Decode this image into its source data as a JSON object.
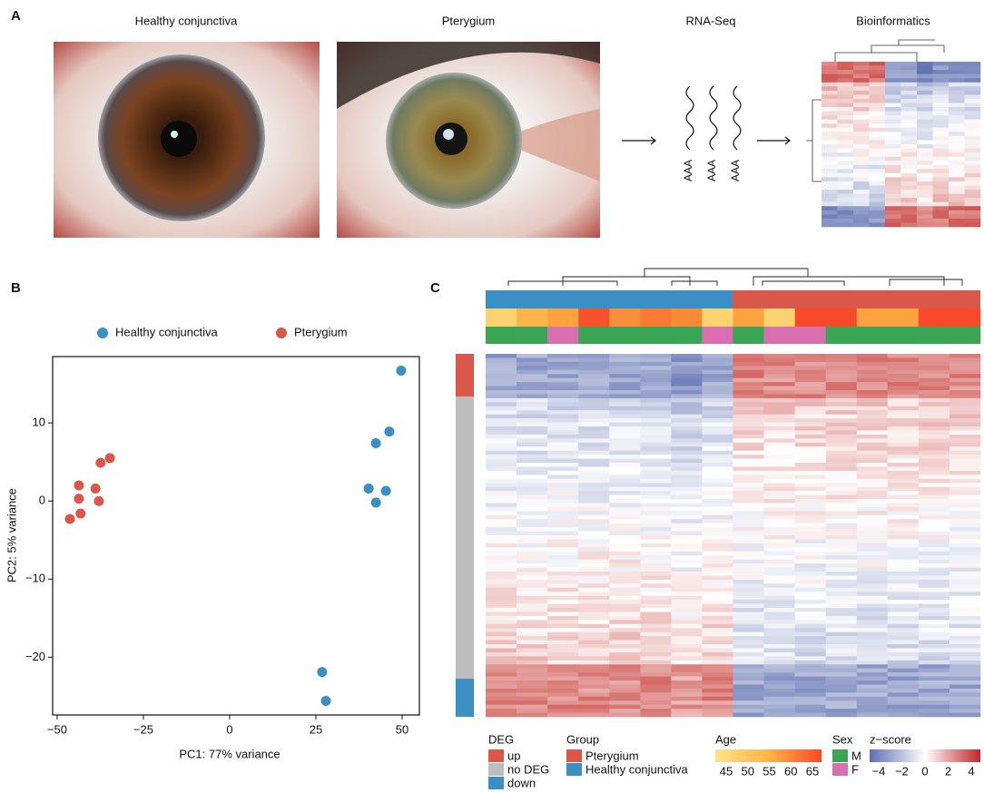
{
  "panel_labels": [
    "A",
    "B",
    "C"
  ],
  "panel_a": {
    "titles": [
      "Healthy conjunctiva",
      "Pterygium",
      "RNA-Seq",
      "Bioinformatics"
    ],
    "polya": [
      "AAA",
      "AAA",
      "AAA"
    ]
  },
  "chart_data": {
    "type": "scatter",
    "xlabel": "PC1: 77% variance",
    "ylabel": "PC2: 5% variance",
    "xlim": [
      -51.3,
      55
    ],
    "ylim": [
      -27.4,
      18.5
    ],
    "xticks": [
      {
        "value": -50,
        "label": "−50"
      },
      {
        "value": -25,
        "label": "−25"
      },
      0,
      25,
      50
    ],
    "yticks": [
      {
        "value": -20,
        "label": "−20"
      },
      {
        "value": -10,
        "label": "−10"
      },
      0,
      10
    ],
    "legend": "top",
    "series": [
      {
        "name": "Healthy conjunctiva",
        "color": "#3a8fc4",
        "x": [
          49.7,
          46.3,
          42.4,
          40.3,
          45.3,
          42.4,
          26.8,
          27.9
        ],
        "values": [
          16.7,
          8.9,
          7.4,
          1.6,
          1.3,
          -0.2,
          -21.9,
          -25.6
        ]
      },
      {
        "name": "Pterygium",
        "color": "#d9584a",
        "x": [
          -46.3,
          -43.2,
          -43.7,
          -43.7,
          -38.9,
          -37.9,
          -37.4,
          -34.7
        ],
        "values": [
          -2.3,
          -1.6,
          0.3,
          2.0,
          1.6,
          0,
          4.9,
          5.5
        ]
      }
    ]
  },
  "heatmap_legend": {
    "deg": {
      "title": "DEG",
      "items": [
        "up",
        "no DEG",
        "down"
      ],
      "colors": [
        "#d9584a",
        "#bdbdbd",
        "#3a8fc4"
      ]
    },
    "group": {
      "title": "Group",
      "items": [
        "Pterygium",
        "Healthy conjunctiva"
      ],
      "colors": [
        "#d9584a",
        "#3a8fc4"
      ]
    },
    "age": {
      "title": "Age",
      "ticks": [
        45,
        50,
        55,
        60,
        65
      ]
    },
    "sex": {
      "title": "Sex",
      "items": [
        "M",
        "F"
      ],
      "colors": [
        "#3aa655",
        "#d86fb0"
      ]
    },
    "zscore": {
      "title": "z−score",
      "ticks": [
        {
          "value": -4,
          "label": "−4"
        },
        {
          "value": -2,
          "label": "−2"
        },
        0,
        2,
        4
      ]
    }
  }
}
